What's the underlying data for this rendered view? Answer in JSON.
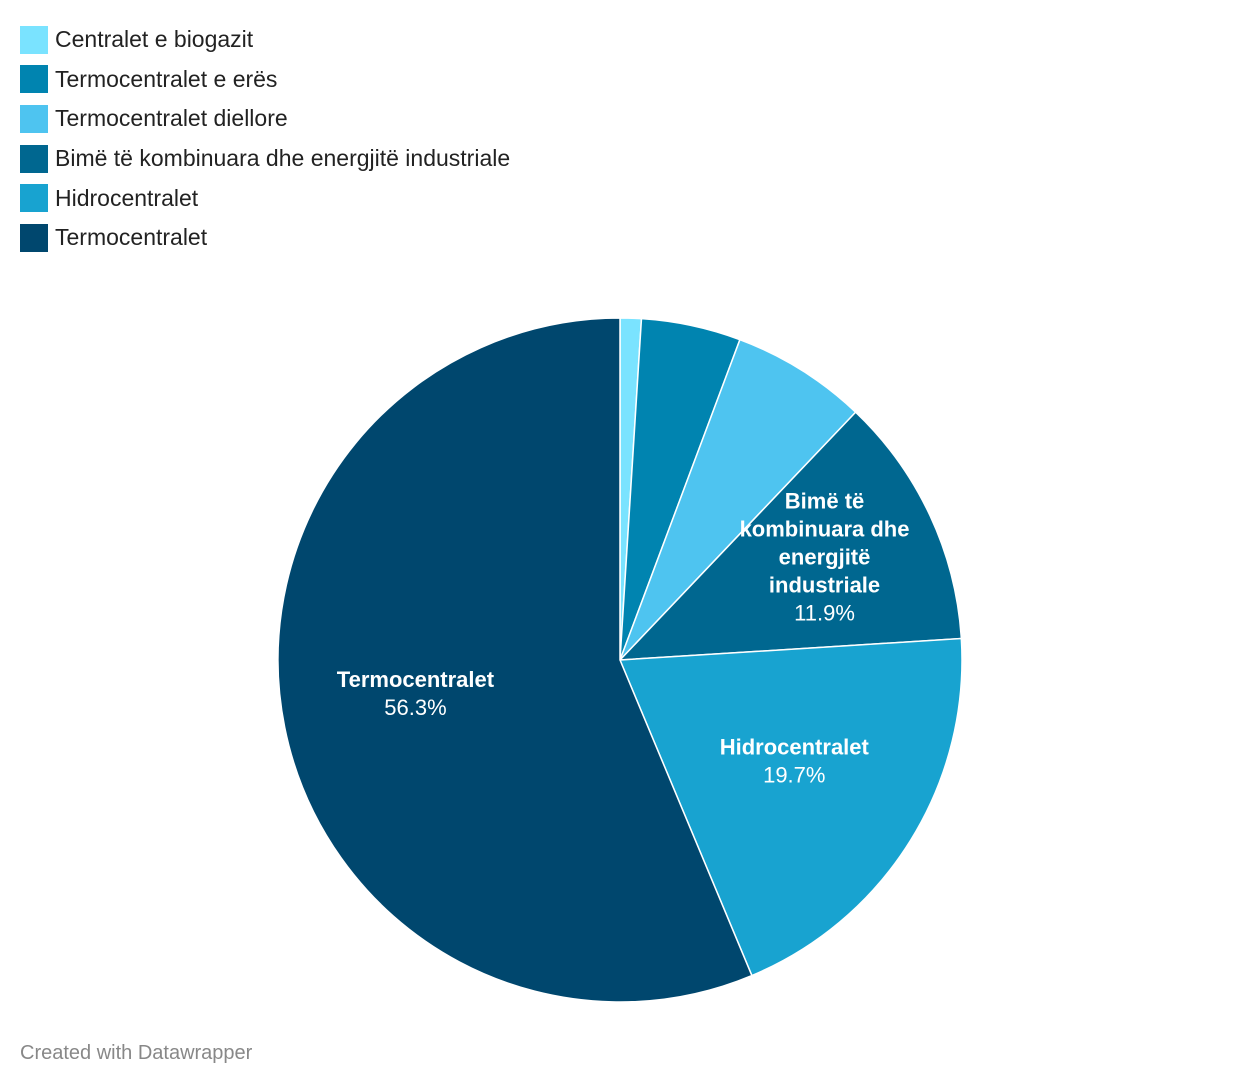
{
  "chart_data": {
    "type": "pie",
    "slices": [
      {
        "name": "Centralet e biogazit",
        "value": 1.0,
        "color": "#7ae3ff",
        "label": "",
        "value_label": ""
      },
      {
        "name": "Termocentralet e erës",
        "value": 4.7,
        "color": "#0084b0",
        "label": "",
        "value_label": ""
      },
      {
        "name": "Termocentralet diellore",
        "value": 6.4,
        "color": "#4ec4f0",
        "label": "",
        "value_label": ""
      },
      {
        "name": "Bimë të kombinuara dhe energjitë industriale",
        "value": 11.9,
        "color": "#006790",
        "label": "Bimë të kombinuara dhe energjitë industriale",
        "value_label": "11.9%"
      },
      {
        "name": "Hidrocentralet",
        "value": 19.7,
        "color": "#18a3d0",
        "label": "Hidrocentralet",
        "value_label": "19.7%"
      },
      {
        "name": "Termocentralet",
        "value": 56.3,
        "color": "#00476e",
        "label": "Termocentralet",
        "value_label": "56.3%"
      }
    ]
  },
  "legend": {
    "items": [
      {
        "label": "Centralet e biogazit",
        "color": "#7ae3ff"
      },
      {
        "label": "Termocentralet e erës",
        "color": "#0084b0"
      },
      {
        "label": "Termocentralet diellore",
        "color": "#4ec4f0"
      },
      {
        "label": "Bimë të kombinuara dhe energjitë industriale",
        "color": "#006790"
      },
      {
        "label": "Hidrocentralet",
        "color": "#18a3d0"
      },
      {
        "label": "Termocentralet",
        "color": "#00476e"
      }
    ]
  },
  "footer": {
    "credit": "Created with Datawrapper"
  }
}
